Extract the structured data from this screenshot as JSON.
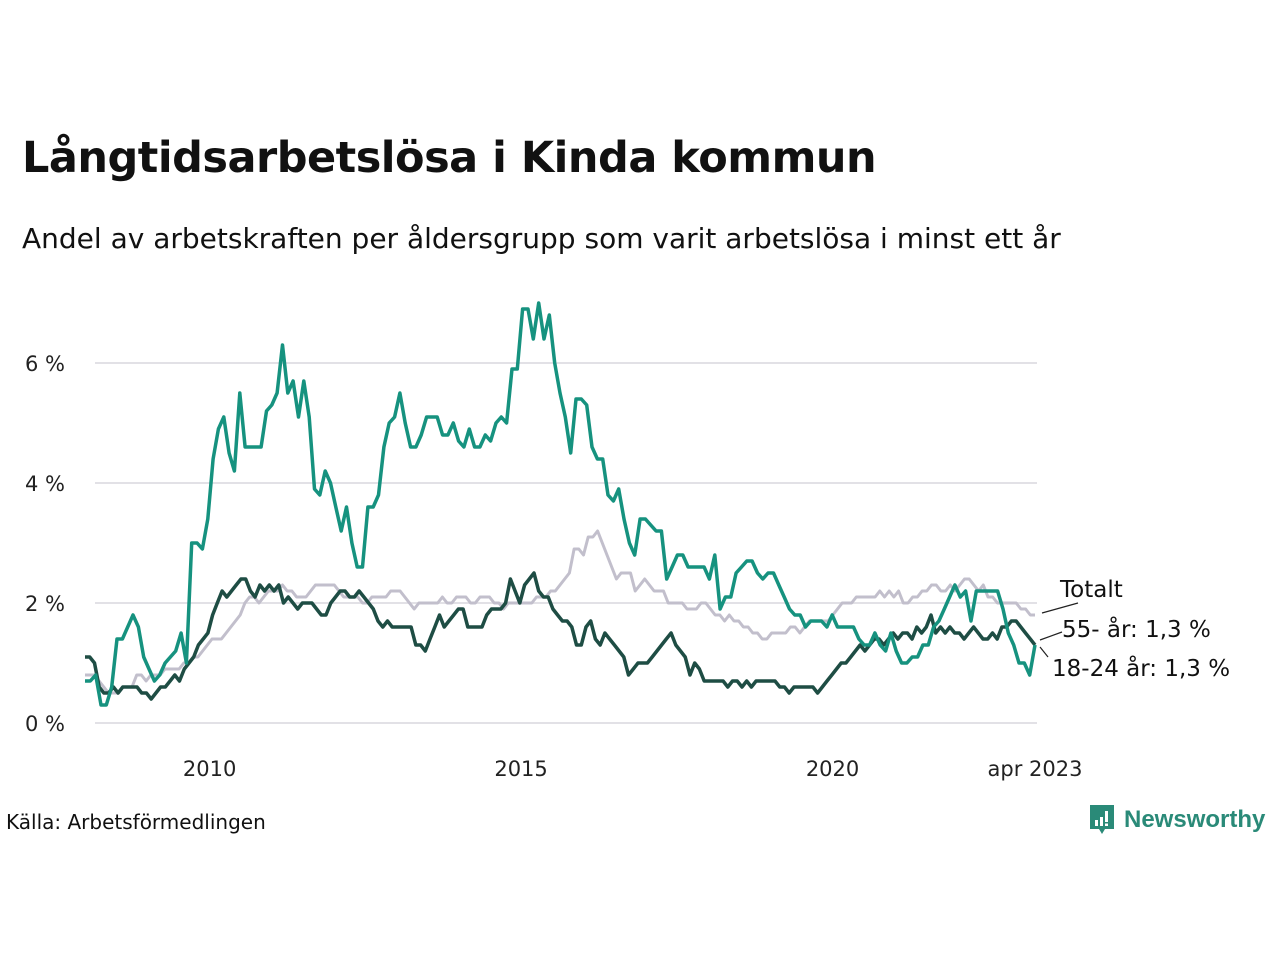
{
  "title": "Långtidsarbetslösa i Kinda kommun",
  "subtitle": "Andel av arbetskraften per åldersgrupp som varit arbetslösa i minst ett år",
  "source": "Källa: Arbetsförmedlingen",
  "logo": {
    "name": "Newsworthy",
    "icon": "newsworthy-chat-bars-icon",
    "color": "#2a8a78"
  },
  "chart_data": {
    "type": "line",
    "title": "Långtidsarbetslösa i Kinda kommun",
    "subtitle": "Andel av arbetskraften per åldersgrupp som varit arbetslösa i minst ett år",
    "xlabel": "",
    "ylabel": "",
    "x_start": "2008-01",
    "x_end": "2023-04",
    "x_ticks": [
      {
        "value": 2010.0,
        "label": "2010"
      },
      {
        "value": 2015.0,
        "label": "2015"
      },
      {
        "value": 2020.0,
        "label": "2020"
      },
      {
        "value": 2023.25,
        "label": "apr 2023"
      }
    ],
    "y_ticks": [
      {
        "value": 0,
        "label": "0 %"
      },
      {
        "value": 2,
        "label": "2 %"
      },
      {
        "value": 4,
        "label": "4 %"
      },
      {
        "value": 6,
        "label": "6 %"
      }
    ],
    "ylim": [
      0,
      7
    ],
    "xlim": [
      2008.0,
      2023.25
    ],
    "grid": "horizontal",
    "legend": "direct-labels-right",
    "series": [
      {
        "name": "Totalt",
        "label": "Totalt",
        "color": "#c2bfcc",
        "values": [
          0.8,
          0.8,
          0.8,
          0.7,
          0.6,
          0.5,
          0.5,
          0.5,
          0.6,
          0.6,
          0.6,
          0.8,
          0.8,
          0.7,
          0.8,
          0.8,
          0.8,
          0.9,
          0.9,
          0.9,
          0.9,
          1.0,
          1.0,
          1.1,
          1.1,
          1.2,
          1.3,
          1.4,
          1.4,
          1.4,
          1.5,
          1.6,
          1.7,
          1.8,
          2.0,
          2.1,
          2.1,
          2.0,
          2.1,
          2.2,
          2.2,
          2.2,
          2.3,
          2.2,
          2.2,
          2.1,
          2.1,
          2.1,
          2.2,
          2.3,
          2.3,
          2.3,
          2.3,
          2.3,
          2.2,
          2.1,
          2.1,
          2.1,
          2.1,
          2.0,
          2.0,
          2.1,
          2.1,
          2.1,
          2.1,
          2.2,
          2.2,
          2.2,
          2.1,
          2.0,
          1.9,
          2.0,
          2.0,
          2.0,
          2.0,
          2.0,
          2.1,
          2.0,
          2.0,
          2.1,
          2.1,
          2.1,
          2.0,
          2.0,
          2.1,
          2.1,
          2.1,
          2.0,
          2.0,
          1.9,
          2.0,
          2.0,
          2.0,
          2.0,
          2.0,
          2.0,
          2.1,
          2.1,
          2.1,
          2.2,
          2.2,
          2.3,
          2.4,
          2.5,
          2.9,
          2.9,
          2.8,
          3.1,
          3.1,
          3.2,
          3.0,
          2.8,
          2.6,
          2.4,
          2.5,
          2.5,
          2.5,
          2.2,
          2.3,
          2.4,
          2.3,
          2.2,
          2.2,
          2.2,
          2.0,
          2.0,
          2.0,
          2.0,
          1.9,
          1.9,
          1.9,
          2.0,
          2.0,
          1.9,
          1.8,
          1.8,
          1.7,
          1.8,
          1.7,
          1.7,
          1.6,
          1.6,
          1.5,
          1.5,
          1.4,
          1.4,
          1.5,
          1.5,
          1.5,
          1.5,
          1.6,
          1.6,
          1.5,
          1.6,
          1.7,
          1.7,
          1.7,
          1.7,
          1.7,
          1.8,
          1.9,
          2.0,
          2.0,
          2.0,
          2.1,
          2.1,
          2.1,
          2.1,
          2.1,
          2.2,
          2.1,
          2.2,
          2.1,
          2.2,
          2.0,
          2.0,
          2.1,
          2.1,
          2.2,
          2.2,
          2.3,
          2.3,
          2.2,
          2.2,
          2.3,
          2.2,
          2.3,
          2.4,
          2.4,
          2.3,
          2.2,
          2.3,
          2.1,
          2.1,
          2.0,
          2.0,
          2.0,
          2.0,
          2.0,
          1.9,
          1.9,
          1.8,
          1.8
        ]
      },
      {
        "name": "55- år",
        "label": "55- år: 1,3 %",
        "last_value": 1.3,
        "color": "#1e4d44",
        "values": [
          1.1,
          1.1,
          1.0,
          0.6,
          0.5,
          0.5,
          0.6,
          0.5,
          0.6,
          0.6,
          0.6,
          0.6,
          0.5,
          0.5,
          0.4,
          0.5,
          0.6,
          0.6,
          0.7,
          0.8,
          0.7,
          0.9,
          1.0,
          1.1,
          1.3,
          1.4,
          1.5,
          1.8,
          2.0,
          2.2,
          2.1,
          2.2,
          2.3,
          2.4,
          2.4,
          2.2,
          2.1,
          2.3,
          2.2,
          2.3,
          2.2,
          2.3,
          2.0,
          2.1,
          2.0,
          1.9,
          2.0,
          2.0,
          2.0,
          1.9,
          1.8,
          1.8,
          2.0,
          2.1,
          2.2,
          2.2,
          2.1,
          2.1,
          2.2,
          2.1,
          2.0,
          1.9,
          1.7,
          1.6,
          1.7,
          1.6,
          1.6,
          1.6,
          1.6,
          1.6,
          1.3,
          1.3,
          1.2,
          1.4,
          1.6,
          1.8,
          1.6,
          1.7,
          1.8,
          1.9,
          1.9,
          1.6,
          1.6,
          1.6,
          1.6,
          1.8,
          1.9,
          1.9,
          1.9,
          2.0,
          2.4,
          2.2,
          2.0,
          2.3,
          2.4,
          2.5,
          2.2,
          2.1,
          2.1,
          1.9,
          1.8,
          1.7,
          1.7,
          1.6,
          1.3,
          1.3,
          1.6,
          1.7,
          1.4,
          1.3,
          1.5,
          1.4,
          1.3,
          1.2,
          1.1,
          0.8,
          0.9,
          1.0,
          1.0,
          1.0,
          1.1,
          1.2,
          1.3,
          1.4,
          1.5,
          1.3,
          1.2,
          1.1,
          0.8,
          1.0,
          0.9,
          0.7,
          0.7,
          0.7,
          0.7,
          0.7,
          0.6,
          0.7,
          0.7,
          0.6,
          0.7,
          0.6,
          0.7,
          0.7,
          0.7,
          0.7,
          0.7,
          0.6,
          0.6,
          0.5,
          0.6,
          0.6,
          0.6,
          0.6,
          0.6,
          0.5,
          0.6,
          0.7,
          0.8,
          0.9,
          1.0,
          1.0,
          1.1,
          1.2,
          1.3,
          1.2,
          1.3,
          1.4,
          1.4,
          1.3,
          1.4,
          1.5,
          1.4,
          1.5,
          1.5,
          1.4,
          1.6,
          1.5,
          1.6,
          1.8,
          1.5,
          1.6,
          1.5,
          1.6,
          1.5,
          1.5,
          1.4,
          1.5,
          1.6,
          1.5,
          1.4,
          1.4,
          1.5,
          1.4,
          1.6,
          1.6,
          1.7,
          1.7,
          1.6,
          1.5,
          1.4,
          1.3
        ]
      },
      {
        "name": "18-24 år",
        "label": "18-24 år: 1,3 %",
        "last_value": 1.3,
        "color": "#16927f",
        "values": [
          0.7,
          0.7,
          0.8,
          0.3,
          0.3,
          0.6,
          1.4,
          1.4,
          1.6,
          1.8,
          1.6,
          1.1,
          0.9,
          0.7,
          0.8,
          1.0,
          1.1,
          1.2,
          1.5,
          1.0,
          3.0,
          3.0,
          2.9,
          3.4,
          4.4,
          4.9,
          5.1,
          4.5,
          4.2,
          5.5,
          4.6,
          4.6,
          4.6,
          4.6,
          5.2,
          5.3,
          5.5,
          6.3,
          5.5,
          5.7,
          5.1,
          5.7,
          5.1,
          3.9,
          3.8,
          4.2,
          4.0,
          3.6,
          3.2,
          3.6,
          3.0,
          2.6,
          2.6,
          3.6,
          3.6,
          3.8,
          4.6,
          5.0,
          5.1,
          5.5,
          5.0,
          4.6,
          4.6,
          4.8,
          5.1,
          5.1,
          5.1,
          4.8,
          4.8,
          5.0,
          4.7,
          4.6,
          4.9,
          4.6,
          4.6,
          4.8,
          4.7,
          5.0,
          5.1,
          5.0,
          5.9,
          5.9,
          6.9,
          6.9,
          6.4,
          7.0,
          6.4,
          6.8,
          6.0,
          5.5,
          5.1,
          4.5,
          5.4,
          5.4,
          5.3,
          4.6,
          4.4,
          4.4,
          3.8,
          3.7,
          3.9,
          3.4,
          3.0,
          2.8,
          3.4,
          3.4,
          3.3,
          3.2,
          3.2,
          2.4,
          2.6,
          2.8,
          2.8,
          2.6,
          2.6,
          2.6,
          2.6,
          2.4,
          2.8,
          1.9,
          2.1,
          2.1,
          2.5,
          2.6,
          2.7,
          2.7,
          2.5,
          2.4,
          2.5,
          2.5,
          2.3,
          2.1,
          1.9,
          1.8,
          1.8,
          1.6,
          1.7,
          1.7,
          1.7,
          1.6,
          1.8,
          1.6,
          1.6,
          1.6,
          1.6,
          1.4,
          1.3,
          1.3,
          1.5,
          1.3,
          1.2,
          1.5,
          1.2,
          1.0,
          1.0,
          1.1,
          1.1,
          1.3,
          1.3,
          1.6,
          1.7,
          1.9,
          2.1,
          2.3,
          2.1,
          2.2,
          1.7,
          2.2,
          2.2,
          2.2,
          2.2,
          2.2,
          1.9,
          1.5,
          1.3,
          1.0,
          1.0,
          0.8,
          1.3
        ]
      }
    ]
  }
}
